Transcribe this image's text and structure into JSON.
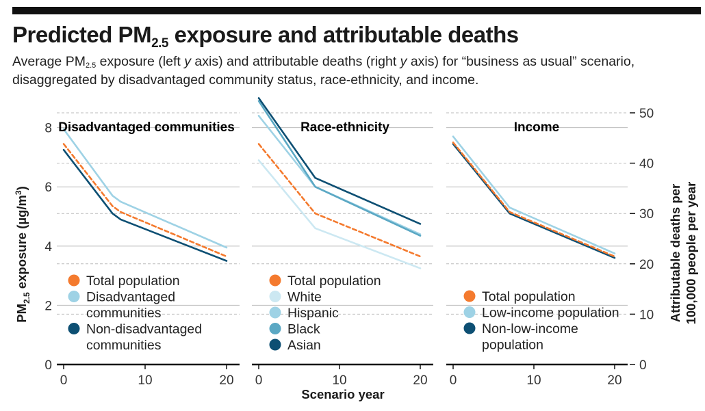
{
  "header": {
    "title_pre": "Predicted PM",
    "title_sub": "2.5",
    "title_post": " exposure and attributable deaths",
    "subtitle_p1": "Average PM",
    "subtitle_sub": "2.5",
    "subtitle_p2": " exposure (left ",
    "subtitle_y1": "y",
    "subtitle_p3": " axis) and attributable deaths (right ",
    "subtitle_y2": "y",
    "subtitle_p4": " axis) for “business as usual” scenario,",
    "subtitle_line2": "disaggregated by disadvantaged community status, race-ethnicity, and income."
  },
  "colors": {
    "total": "#f47a2e",
    "light": "#cce8f2",
    "medium": "#9ed2e5",
    "steel": "#5ba8c4",
    "dark": "#0d4f73",
    "grid": "#bbbbbb",
    "axis": "#111111"
  },
  "axes": {
    "left_label_pre": "PM",
    "left_label_sub": "2.5",
    "left_label_post": " exposure (µg/m",
    "left_label_sup": "3",
    "left_label_end": ")",
    "right_label_line1": "Attributable deaths per",
    "right_label_line2": "100,000 people per year",
    "x_label": "Scenario year",
    "left_ticks": [
      "0",
      "2",
      "4",
      "6",
      "8"
    ],
    "right_ticks": [
      "0",
      "10",
      "20",
      "30",
      "40",
      "50"
    ],
    "x_ticks": [
      "0",
      "10",
      "20"
    ]
  },
  "chart_data": [
    {
      "type": "line",
      "title": "Disadvantaged communities",
      "xlabel": "Scenario year",
      "ylabel": "PM2.5 exposure (µg/m3)",
      "y2label": "Attributable deaths per 100,000 people per year",
      "xlim": [
        0,
        21.5
      ],
      "ylim": [
        0,
        8.5
      ],
      "y2lim": [
        0,
        50
      ],
      "x": [
        0,
        6,
        7,
        20
      ],
      "series": [
        {
          "name": "Total population",
          "color_key": "total",
          "dashed": true,
          "values": [
            7.45,
            5.35,
            5.15,
            3.65
          ]
        },
        {
          "name": "Disadvantaged communities",
          "color_key": "medium",
          "dashed": false,
          "values": [
            7.95,
            5.7,
            5.5,
            3.95
          ]
        },
        {
          "name": "Non-disadvantaged communities",
          "color_key": "dark",
          "dashed": false,
          "values": [
            7.25,
            5.1,
            4.9,
            3.5
          ]
        }
      ],
      "legend": [
        {
          "color_key": "total",
          "lines": [
            "Total population"
          ]
        },
        {
          "color_key": "medium",
          "lines": [
            "Disadvantaged",
            "communities"
          ]
        },
        {
          "color_key": "dark",
          "lines": [
            "Non-disadvantaged",
            "communities"
          ]
        }
      ]
    },
    {
      "type": "line",
      "title": "Race-ethnicity",
      "xlabel": "Scenario year",
      "ylabel": "PM2.5 exposure (µg/m3)",
      "y2label": "Attributable deaths per 100,000 people per year",
      "xlim": [
        0,
        21.5
      ],
      "ylim": [
        0,
        8.5
      ],
      "y2lim": [
        0,
        50
      ],
      "x": [
        0,
        7,
        20
      ],
      "series": [
        {
          "name": "Total population",
          "color_key": "total",
          "dashed": true,
          "values": [
            7.45,
            5.1,
            3.65
          ]
        },
        {
          "name": "White",
          "color_key": "light",
          "dashed": false,
          "values": [
            6.9,
            4.6,
            3.25
          ]
        },
        {
          "name": "Hispanic",
          "color_key": "medium",
          "dashed": false,
          "values": [
            8.4,
            6.0,
            4.4
          ]
        },
        {
          "name": "Black",
          "color_key": "steel",
          "dashed": false,
          "values": [
            8.9,
            6.0,
            4.35
          ]
        },
        {
          "name": "Asian",
          "color_key": "dark",
          "dashed": false,
          "values": [
            9.0,
            6.3,
            4.75
          ]
        }
      ],
      "legend": [
        {
          "color_key": "total",
          "lines": [
            "Total population"
          ]
        },
        {
          "color_key": "light",
          "lines": [
            "White"
          ]
        },
        {
          "color_key": "medium",
          "lines": [
            "Hispanic"
          ]
        },
        {
          "color_key": "steel",
          "lines": [
            "Black"
          ]
        },
        {
          "color_key": "dark",
          "lines": [
            "Asian"
          ]
        }
      ]
    },
    {
      "type": "line",
      "title": "Income",
      "xlabel": "Scenario year",
      "ylabel": "PM2.5 exposure (µg/m3)",
      "y2label": "Attributable deaths per 100,000 people per year",
      "xlim": [
        0,
        21.5
      ],
      "ylim": [
        0,
        8.5
      ],
      "y2lim": [
        0,
        50
      ],
      "x": [
        0,
        7,
        20
      ],
      "series": [
        {
          "name": "Total population",
          "color_key": "total",
          "dashed": true,
          "values": [
            7.5,
            5.15,
            3.65
          ]
        },
        {
          "name": "Low-income population",
          "color_key": "medium",
          "dashed": false,
          "values": [
            7.7,
            5.3,
            3.75
          ]
        },
        {
          "name": "Non-low-income population",
          "color_key": "dark",
          "dashed": false,
          "values": [
            7.45,
            5.1,
            3.6
          ]
        }
      ],
      "legend": [
        {
          "color_key": "total",
          "lines": [
            "Total population"
          ]
        },
        {
          "color_key": "medium",
          "lines": [
            "Low-income population"
          ]
        },
        {
          "color_key": "dark",
          "lines": [
            "Non-low-income",
            "population"
          ]
        }
      ]
    }
  ]
}
